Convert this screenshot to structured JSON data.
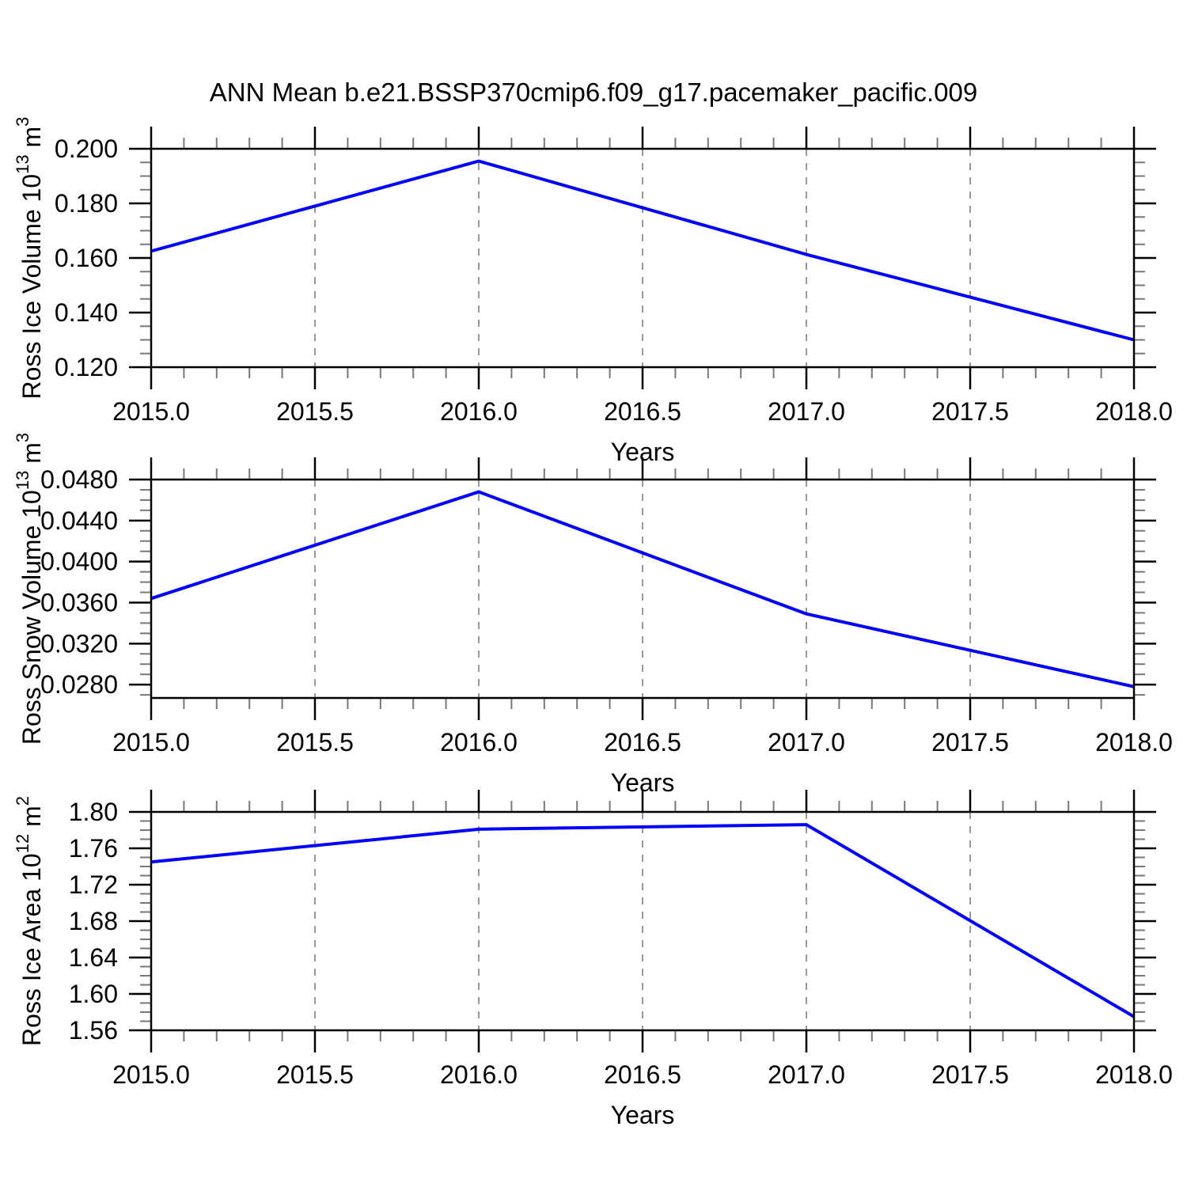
{
  "title": "ANN Mean b.e21.BSSP370cmip6.f09_g17.pacemaker_pacific.009",
  "colors": {
    "line": "#0000ff",
    "axis": "#000000",
    "grid": "#999999",
    "minor_tick": "#777777",
    "background": "#ffffff"
  },
  "chart_data": [
    {
      "type": "line",
      "x": [
        2015.0,
        2016.0,
        2017.0,
        2018.0
      ],
      "series": [
        {
          "name": "Ross Ice Volume",
          "values": [
            0.1625,
            0.1955,
            0.1613,
            0.13
          ]
        }
      ],
      "xlabel": "Years",
      "ylabel": "Ross Ice Volume 10^13 m^3",
      "ylabel_parts": [
        {
          "t": "Ross Ice Volume 10"
        },
        {
          "t": "13",
          "sup": true
        },
        {
          "t": " m"
        },
        {
          "t": "3",
          "sup": true
        }
      ],
      "xlim": [
        2015.0,
        2018.0
      ],
      "ylim": [
        0.12,
        0.2
      ],
      "xticks": [
        2015.0,
        2015.5,
        2016.0,
        2016.5,
        2017.0,
        2017.5,
        2018.0
      ],
      "xtick_labels": [
        "2015.0",
        "2015.5",
        "2016.0",
        "2016.5",
        "2017.0",
        "2017.5",
        "2018.0"
      ],
      "yticks": [
        0.2,
        0.18,
        0.16,
        0.14,
        0.12
      ],
      "ytick_labels": [
        "0.200",
        "0.180",
        "0.160",
        "0.140",
        "0.120"
      ],
      "xminor_step": 0.1,
      "yminor_step": 0.005,
      "grid_x": [
        2015.5,
        2016.0,
        2016.5,
        2017.0,
        2017.5
      ],
      "grid_style": "dashed-vertical-only"
    },
    {
      "type": "line",
      "x": [
        2015.0,
        2016.0,
        2017.0,
        2018.0
      ],
      "series": [
        {
          "name": "Ross Snow Volume",
          "values": [
            0.0364,
            0.0468,
            0.0349,
            0.0278
          ]
        }
      ],
      "xlabel": "Years",
      "ylabel": "Ross Snow Volume 10^13 m^3",
      "ylabel_parts": [
        {
          "t": "Ross Snow Volume 10"
        },
        {
          "t": "13",
          "sup": true
        },
        {
          "t": " m"
        },
        {
          "t": "3",
          "sup": true
        }
      ],
      "xlim": [
        2015.0,
        2018.0
      ],
      "ylim": [
        0.0267,
        0.048
      ],
      "xticks": [
        2015.0,
        2015.5,
        2016.0,
        2016.5,
        2017.0,
        2017.5,
        2018.0
      ],
      "xtick_labels": [
        "2015.0",
        "2015.5",
        "2016.0",
        "2016.5",
        "2017.0",
        "2017.5",
        "2018.0"
      ],
      "yticks": [
        0.048,
        0.044,
        0.04,
        0.036,
        0.032,
        0.028
      ],
      "ytick_labels": [
        "0.0480",
        "0.0440",
        "0.0400",
        "0.0360",
        "0.0320",
        "0.0280"
      ],
      "xminor_step": 0.1,
      "yminor_step": 0.001,
      "grid_x": [
        2015.5,
        2016.0,
        2016.5,
        2017.0,
        2017.5
      ],
      "grid_style": "dashed-vertical-only"
    },
    {
      "type": "line",
      "x": [
        2015.0,
        2016.0,
        2017.0,
        2018.0
      ],
      "series": [
        {
          "name": "Ross Ice Area",
          "values": [
            1.745,
            1.781,
            1.786,
            1.575
          ]
        }
      ],
      "xlabel": "Years",
      "ylabel": "Ross Ice Area 10^12 m^2",
      "ylabel_parts": [
        {
          "t": "Ross Ice Area 10"
        },
        {
          "t": "12",
          "sup": true
        },
        {
          "t": " m"
        },
        {
          "t": "2",
          "sup": true
        }
      ],
      "xlim": [
        2015.0,
        2018.0
      ],
      "ylim": [
        1.56,
        1.8
      ],
      "xticks": [
        2015.0,
        2015.5,
        2016.0,
        2016.5,
        2017.0,
        2017.5,
        2018.0
      ],
      "xtick_labels": [
        "2015.0",
        "2015.5",
        "2016.0",
        "2016.5",
        "2017.0",
        "2017.5",
        "2018.0"
      ],
      "yticks": [
        1.8,
        1.76,
        1.72,
        1.68,
        1.64,
        1.6,
        1.56
      ],
      "ytick_labels": [
        "1.80",
        "1.76",
        "1.72",
        "1.68",
        "1.64",
        "1.60",
        "1.56"
      ],
      "xminor_step": 0.1,
      "yminor_step": 0.01,
      "grid_x": [
        2015.5,
        2016.0,
        2016.5,
        2017.0,
        2017.5
      ],
      "grid_style": "dashed-vertical-only"
    }
  ]
}
